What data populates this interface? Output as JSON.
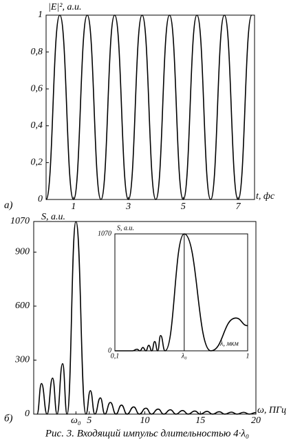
{
  "chart_data": [
    {
      "type": "line",
      "panel_label": "а)",
      "ylabel": "|E|², a.u.",
      "xlabel": "t, фс",
      "color": "#000000",
      "x": [
        0,
        0.5,
        1,
        1.5,
        2,
        2.5,
        3,
        3.5,
        4,
        4.5,
        5,
        5.5,
        6,
        6.5,
        7,
        7.5
      ],
      "values": [
        0,
        1,
        0,
        1,
        0,
        1,
        0,
        1,
        0,
        1,
        0,
        1,
        0,
        1,
        0,
        1
      ],
      "xlim": [
        0,
        7.6
      ],
      "ylim": [
        0,
        1
      ],
      "xticks": [
        1,
        3,
        5,
        7
      ],
      "yticks": [
        0,
        {
          "value": 0.2,
          "label": "0,2"
        },
        {
          "value": 0.4,
          "label": "0,4"
        },
        {
          "value": 0.6,
          "label": "0,6"
        },
        {
          "value": 0.8,
          "label": "0,8"
        },
        1
      ]
    },
    {
      "type": "line",
      "panel_label": "б)",
      "ylabel": "S, a.u.",
      "xlabel": "ω, ПГц",
      "color": "#000000",
      "x": [
        0.3,
        0.7,
        1.2,
        1.7,
        2.1,
        2.6,
        3.0,
        3.8,
        4.7,
        5.1,
        5.5,
        6.0,
        6.4,
        6.9,
        7.4,
        7.9,
        8.4,
        9.0,
        9.5,
        10.1,
        10.6,
        11.2,
        11.7,
        12.3,
        12.8,
        13.4,
        13.9,
        14.5,
        15.0,
        15.6,
        16.1,
        16.7,
        17.2,
        17.8,
        18.3,
        18.9,
        19.4,
        20
      ],
      "values": [
        0,
        170,
        0,
        200,
        0,
        280,
        0,
        1070,
        0,
        130,
        0,
        90,
        0,
        65,
        0,
        50,
        0,
        40,
        0,
        33,
        0,
        28,
        0,
        24,
        0,
        20,
        0,
        17,
        0,
        15,
        0,
        13,
        0,
        11,
        0,
        10,
        0,
        9
      ],
      "xlim": [
        0,
        20
      ],
      "ylim": [
        0,
        1070
      ],
      "xticks": [
        {
          "value": 3.8,
          "label": "ω₀"
        },
        5,
        10,
        15,
        20
      ],
      "yticks": [
        0,
        300,
        600,
        900,
        1070
      ]
    },
    {
      "type": "line",
      "ylabel": "S, a.u.",
      "xlabel": "λ, мкм",
      "color": "#000000",
      "xgrid": true,
      "x": [
        0.1,
        0.22,
        0.25,
        0.27,
        0.29,
        0.31,
        0.33,
        0.35,
        0.37,
        0.39,
        0.41,
        0.44,
        0.57,
        0.75,
        0.92,
        1.0
      ],
      "values": [
        0,
        0,
        15,
        0,
        30,
        0,
        50,
        0,
        85,
        0,
        140,
        0,
        1070,
        0,
        300,
        230
      ],
      "xlim": [
        0.1,
        1
      ],
      "ylim": [
        0,
        1070
      ],
      "xticks": [
        {
          "value": 0.1,
          "label": "0,1"
        },
        {
          "value": 0.57,
          "label": "λ₀"
        },
        1
      ],
      "yticks": [
        0,
        1070
      ]
    }
  ],
  "caption": "Рис. 3. Входящий импульс длительностью 4·λ₀"
}
